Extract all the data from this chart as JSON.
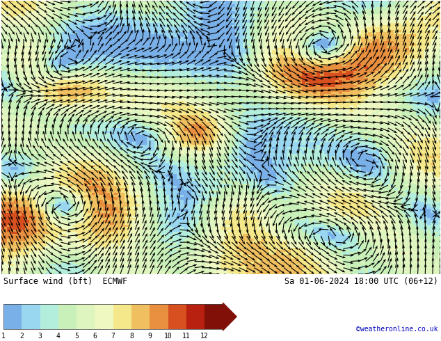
{
  "title_left": "Surface wind (bft)  ECMWF",
  "title_right": "Sa 01-06-2024 18:00 UTC (06+12)",
  "watermark": "©weatheronline.co.uk",
  "colorbar_ticks": [
    1,
    2,
    3,
    4,
    5,
    6,
    7,
    8,
    9,
    10,
    11,
    12
  ],
  "colorbar_colors": [
    "#7ab0e8",
    "#99d6f0",
    "#b3eedd",
    "#c8f0b8",
    "#dff5c0",
    "#eef8c0",
    "#f5e88a",
    "#f0c060",
    "#e89040",
    "#d85020",
    "#b82010",
    "#801008"
  ],
  "fig_width": 6.34,
  "fig_height": 4.9,
  "background_color": "#ffffff",
  "arrow_color": "#000000",
  "seed": 17
}
